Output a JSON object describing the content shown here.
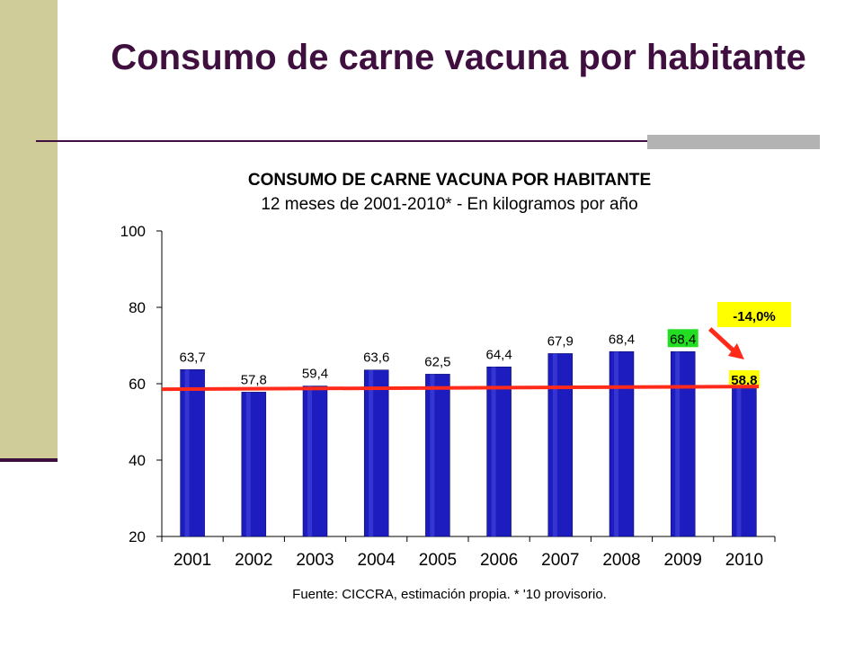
{
  "slide": {
    "title": "Consumo de carne vacuna por habitante"
  },
  "colors": {
    "title": "#3f0f3f",
    "side_band": "#cfcc9a",
    "bar": "#1c1cbf",
    "trend_line": "#ff2a1a",
    "highlight_green": "#22dd22",
    "highlight_yellow": "#ffff00"
  },
  "chart_data": {
    "type": "bar",
    "title": "CONSUMO DE CARNE VACUNA POR HABITANTE",
    "subtitle": "12 meses de 2001-2010* - En kilogramos por año",
    "categories": [
      "2001",
      "2002",
      "2003",
      "2004",
      "2005",
      "2006",
      "2007",
      "2008",
      "2009",
      "2010"
    ],
    "values": [
      63.7,
      57.8,
      59.4,
      63.6,
      62.5,
      64.4,
      67.9,
      68.4,
      68.4,
      58.8
    ],
    "value_labels": [
      "63,7",
      "57,8",
      "59,4",
      "63,6",
      "62,5",
      "64,4",
      "67,9",
      "68,4",
      "68,4",
      "58,8"
    ],
    "ylim": [
      20,
      100
    ],
    "yticks": [
      20,
      40,
      60,
      80,
      100
    ],
    "reference_line": 58.8,
    "highlights": [
      {
        "category": "2009",
        "color": "green"
      },
      {
        "category": "2010",
        "color": "yellow"
      }
    ],
    "annotation": {
      "text": "-14,0%",
      "from": "2009",
      "to": "2010"
    },
    "source": "Fuente: CICCRA, estimación propia. * '10 provisorio."
  }
}
